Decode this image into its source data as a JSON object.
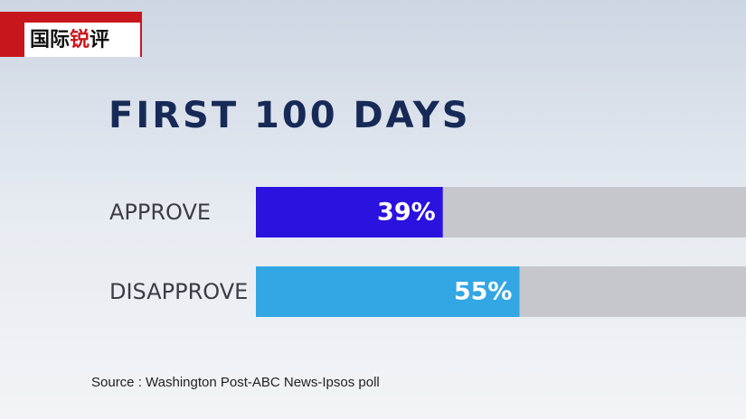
{
  "logo": [
    "国际",
    "锐",
    "评"
  ],
  "chart_data": {
    "type": "bar",
    "orientation": "horizontal",
    "title": "FIRST 100 DAYS",
    "categories": [
      "APPROVE",
      "DISAPPROVE"
    ],
    "values": [
      39,
      55
    ],
    "value_labels": [
      "39%",
      "55%"
    ],
    "colors": [
      "#2b12de",
      "#33a6e4"
    ],
    "xlim": [
      0,
      100
    ],
    "source": "Source : Washington Post-ABC News-Ipsos poll"
  }
}
